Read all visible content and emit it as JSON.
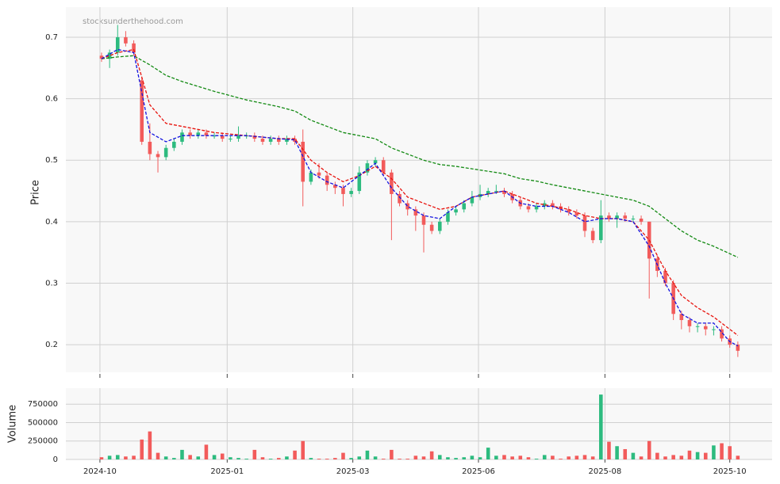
{
  "chart_data": {
    "type": "candlestick",
    "watermark": "stocksunderthehood.com",
    "ylabel": "Price",
    "xlim": [
      -4.43,
      83.25
    ],
    "ylim": [
      0.155,
      0.749
    ],
    "yticks": [
      0.2,
      0.3,
      0.4,
      0.5,
      0.6,
      0.7
    ],
    "xticks": [
      {
        "value": -0.2,
        "label": "2024-10"
      },
      {
        "value": 15.6,
        "label": "2025-01"
      },
      {
        "value": 31.2,
        "label": "2025-03"
      },
      {
        "value": 46.8,
        "label": "2025-06"
      },
      {
        "value": 62.5,
        "label": "2025-08"
      },
      {
        "value": 78.0,
        "label": "2025-10"
      }
    ],
    "grid": true,
    "up_color": "#2dbb7f",
    "down_color": "#f25b5b",
    "open": [
      0.67,
      0.665,
      0.675,
      0.7,
      0.69,
      0.63,
      0.53,
      0.51,
      0.505,
      0.52,
      0.53,
      0.545,
      0.54,
      0.545,
      0.54,
      0.54,
      0.535,
      0.535,
      0.54,
      0.54,
      0.535,
      0.53,
      0.535,
      0.53,
      0.535,
      0.53,
      0.465,
      0.48,
      0.475,
      0.46,
      0.455,
      0.445,
      0.45,
      0.48,
      0.495,
      0.5,
      0.48,
      0.445,
      0.43,
      0.42,
      0.41,
      0.395,
      0.385,
      0.4,
      0.415,
      0.42,
      0.43,
      0.44,
      0.445,
      0.45,
      0.45,
      0.445,
      0.435,
      0.425,
      0.42,
      0.425,
      0.43,
      0.425,
      0.42,
      0.415,
      0.41,
      0.385,
      0.37,
      0.41,
      0.405,
      0.41,
      0.405,
      0.405,
      0.4,
      0.34,
      0.32,
      0.3,
      0.25,
      0.24,
      0.23,
      0.23,
      0.225,
      0.225,
      0.21,
      0.2
    ],
    "high": [
      0.675,
      0.68,
      0.72,
      0.71,
      0.695,
      0.635,
      0.56,
      0.515,
      0.525,
      0.535,
      0.55,
      0.55,
      0.55,
      0.55,
      0.545,
      0.545,
      0.54,
      0.555,
      0.545,
      0.545,
      0.54,
      0.54,
      0.54,
      0.54,
      0.54,
      0.55,
      0.485,
      0.495,
      0.48,
      0.465,
      0.46,
      0.455,
      0.49,
      0.5,
      0.505,
      0.505,
      0.485,
      0.45,
      0.435,
      0.425,
      0.415,
      0.4,
      0.405,
      0.42,
      0.425,
      0.435,
      0.45,
      0.46,
      0.455,
      0.46,
      0.455,
      0.45,
      0.44,
      0.43,
      0.43,
      0.435,
      0.435,
      0.43,
      0.425,
      0.42,
      0.415,
      0.39,
      0.435,
      0.415,
      0.415,
      0.415,
      0.41,
      0.41,
      0.4,
      0.345,
      0.325,
      0.305,
      0.255,
      0.245,
      0.235,
      0.235,
      0.23,
      0.23,
      0.215,
      0.205
    ],
    "low": [
      0.66,
      0.65,
      0.67,
      0.685,
      0.67,
      0.525,
      0.5,
      0.48,
      0.5,
      0.515,
      0.525,
      0.535,
      0.535,
      0.535,
      0.535,
      0.53,
      0.53,
      0.53,
      0.535,
      0.53,
      0.525,
      0.525,
      0.525,
      0.525,
      0.525,
      0.425,
      0.46,
      0.47,
      0.45,
      0.445,
      0.425,
      0.44,
      0.445,
      0.475,
      0.49,
      0.475,
      0.37,
      0.425,
      0.41,
      0.385,
      0.35,
      0.38,
      0.38,
      0.395,
      0.41,
      0.415,
      0.425,
      0.435,
      0.44,
      0.445,
      0.44,
      0.43,
      0.42,
      0.415,
      0.415,
      0.42,
      0.42,
      0.415,
      0.41,
      0.405,
      0.375,
      0.365,
      0.365,
      0.4,
      0.39,
      0.4,
      0.4,
      0.395,
      0.275,
      0.31,
      0.295,
      0.24,
      0.225,
      0.22,
      0.22,
      0.215,
      0.215,
      0.205,
      0.195,
      0.18
    ],
    "close": [
      0.665,
      0.675,
      0.7,
      0.69,
      0.675,
      0.53,
      0.51,
      0.505,
      0.52,
      0.53,
      0.545,
      0.54,
      0.545,
      0.54,
      0.54,
      0.535,
      0.535,
      0.54,
      0.54,
      0.535,
      0.53,
      0.535,
      0.53,
      0.535,
      0.53,
      0.465,
      0.48,
      0.475,
      0.46,
      0.455,
      0.445,
      0.45,
      0.48,
      0.495,
      0.5,
      0.48,
      0.445,
      0.43,
      0.42,
      0.41,
      0.395,
      0.385,
      0.4,
      0.415,
      0.42,
      0.43,
      0.44,
      0.445,
      0.45,
      0.45,
      0.445,
      0.435,
      0.425,
      0.42,
      0.425,
      0.43,
      0.425,
      0.42,
      0.415,
      0.41,
      0.385,
      0.37,
      0.41,
      0.405,
      0.41,
      0.405,
      0.405,
      0.4,
      0.34,
      0.32,
      0.3,
      0.25,
      0.24,
      0.23,
      0.23,
      0.225,
      0.225,
      0.21,
      0.2,
      0.19
    ],
    "lines_x": [
      0,
      2,
      4,
      6,
      8,
      10,
      14,
      18,
      22,
      24,
      26,
      28,
      30,
      32,
      34,
      36,
      38,
      40,
      42,
      44,
      46,
      48,
      50,
      52,
      54,
      56,
      58,
      60,
      62,
      64,
      66,
      68,
      70,
      72,
      74,
      76,
      78,
      79
    ],
    "lines": [
      {
        "color": "#138a13",
        "values": [
          0.665,
          0.668,
          0.67,
          0.655,
          0.638,
          0.628,
          0.612,
          0.598,
          0.587,
          0.58,
          0.565,
          0.555,
          0.545,
          0.54,
          0.535,
          0.52,
          0.51,
          0.5,
          0.493,
          0.49,
          0.486,
          0.482,
          0.478,
          0.47,
          0.466,
          0.46,
          0.455,
          0.45,
          0.445,
          0.44,
          0.435,
          0.425,
          0.405,
          0.385,
          0.37,
          0.36,
          0.348,
          0.342
        ]
      },
      {
        "color": "#e8140e",
        "values": [
          0.665,
          0.675,
          0.68,
          0.59,
          0.56,
          0.555,
          0.545,
          0.54,
          0.535,
          0.535,
          0.5,
          0.48,
          0.465,
          0.475,
          0.49,
          0.47,
          0.44,
          0.43,
          0.42,
          0.425,
          0.44,
          0.445,
          0.45,
          0.44,
          0.43,
          0.425,
          0.42,
          0.41,
          0.405,
          0.405,
          0.4,
          0.37,
          0.32,
          0.28,
          0.26,
          0.245,
          0.225,
          0.215
        ]
      },
      {
        "color": "#1414e0",
        "values": [
          0.665,
          0.68,
          0.675,
          0.545,
          0.53,
          0.54,
          0.54,
          0.54,
          0.535,
          0.533,
          0.48,
          0.465,
          0.455,
          0.475,
          0.495,
          0.455,
          0.425,
          0.41,
          0.405,
          0.425,
          0.44,
          0.445,
          0.45,
          0.43,
          0.425,
          0.425,
          0.415,
          0.4,
          0.405,
          0.405,
          0.4,
          0.36,
          0.3,
          0.25,
          0.235,
          0.235,
          0.205,
          0.198
        ]
      }
    ],
    "volume": {
      "ylabel": "Volume",
      "ylim": [
        0,
        967000
      ],
      "yticks": [
        0,
        250000,
        500000,
        750000
      ],
      "values": [
        30000,
        50000,
        60000,
        40000,
        50000,
        270000,
        380000,
        90000,
        40000,
        20000,
        130000,
        60000,
        40000,
        200000,
        60000,
        80000,
        30000,
        20000,
        10000,
        130000,
        30000,
        10000,
        20000,
        40000,
        120000,
        250000,
        20000,
        10000,
        10000,
        20000,
        90000,
        20000,
        40000,
        120000,
        40000,
        10000,
        130000,
        10000,
        10000,
        50000,
        40000,
        110000,
        60000,
        30000,
        20000,
        30000,
        50000,
        30000,
        160000,
        50000,
        60000,
        40000,
        50000,
        30000,
        10000,
        60000,
        50000,
        10000,
        40000,
        50000,
        60000,
        40000,
        880000,
        240000,
        180000,
        140000,
        90000,
        40000,
        250000,
        90000,
        40000,
        60000,
        50000,
        120000,
        100000,
        90000,
        190000,
        220000,
        180000,
        50000
      ]
    }
  }
}
